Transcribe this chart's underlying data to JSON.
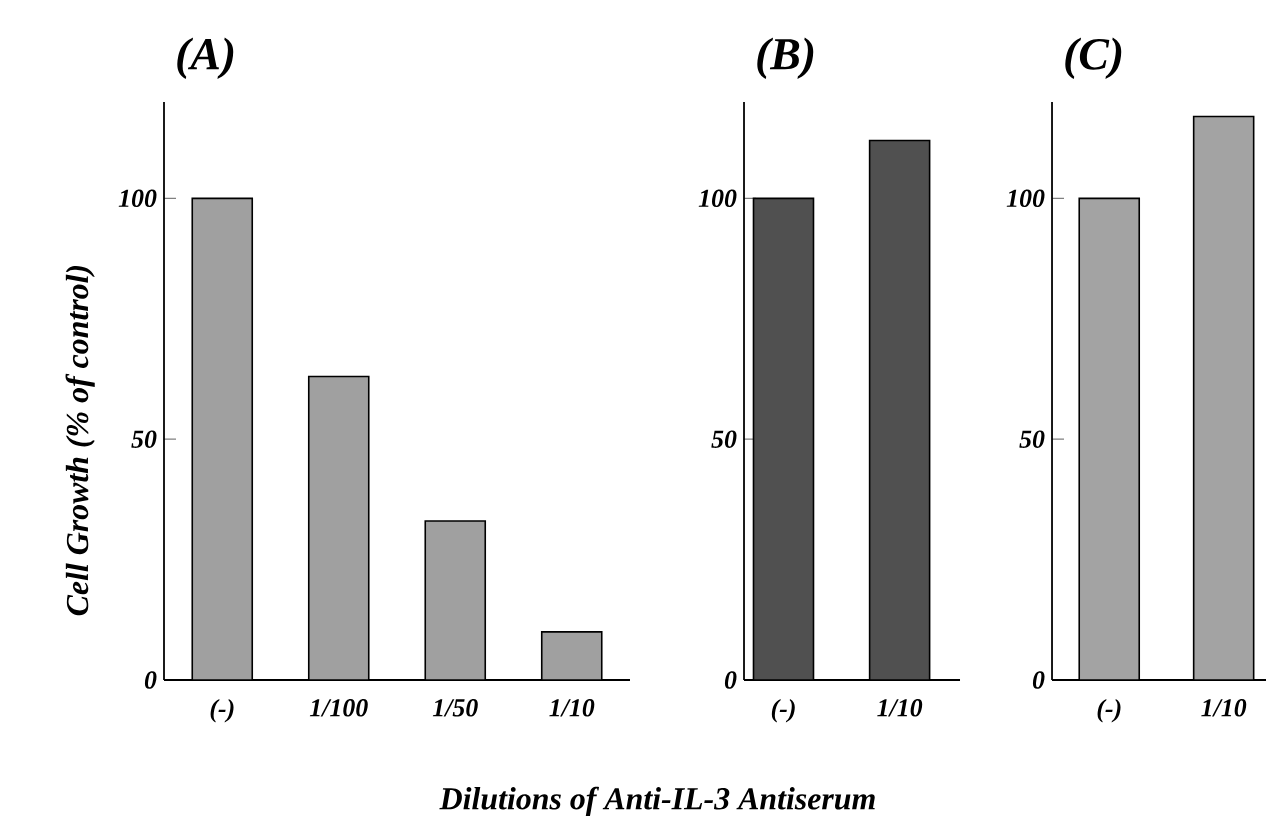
{
  "chart_data": [
    {
      "type": "bar",
      "title": "(A)",
      "xlabel": "Dilutions of Anti-IL-3 Antiserum",
      "ylabel": "Cell Growth (% of control)",
      "categories": [
        "(-)",
        "1/100",
        "1/50",
        "1/10"
      ],
      "values": [
        100,
        63,
        33,
        10
      ],
      "color": "#a0a0a0",
      "ylim": [
        0,
        120
      ],
      "yticks": [
        0,
        50,
        100
      ]
    },
    {
      "type": "bar",
      "title": "(B)",
      "categories": [
        "(-)",
        "1/10"
      ],
      "values": [
        100,
        112
      ],
      "color": "#505050",
      "ylim": [
        0,
        120
      ],
      "yticks": [
        0,
        50,
        100
      ]
    },
    {
      "type": "bar",
      "title": "(C)",
      "categories": [
        "(-)",
        "1/10"
      ],
      "values": [
        100,
        117
      ],
      "color": "#a3a3a3",
      "ylim": [
        0,
        120
      ],
      "yticks": [
        0,
        50,
        100
      ]
    }
  ]
}
